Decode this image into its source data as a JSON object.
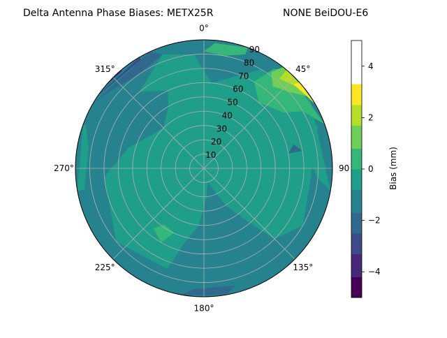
{
  "chart_data": {
    "type": "polar-contour",
    "title": "Delta Antenna Phase Biases: METX25R",
    "subtitle": "NONE BeiDOU-E6",
    "angle_ticks": [
      {
        "deg": 0,
        "label": "0°"
      },
      {
        "deg": 45,
        "label": "45°"
      },
      {
        "deg": 90,
        "label": "90"
      },
      {
        "deg": 135,
        "label": "135°"
      },
      {
        "deg": 180,
        "label": "180°"
      },
      {
        "deg": 225,
        "label": "225°"
      },
      {
        "deg": 270,
        "label": "270°"
      },
      {
        "deg": 315,
        "label": "315°"
      }
    ],
    "radial_ticks": [
      10,
      20,
      30,
      40,
      50,
      60,
      70,
      80,
      90
    ],
    "radial_max": 90,
    "colorbar": {
      "label": "Bias (mm)",
      "min": -5,
      "max": 5,
      "ticks": [
        -4,
        -2,
        0,
        2,
        4
      ],
      "levels": [
        -5,
        -4.2,
        -3.3,
        -2.5,
        -1.7,
        -0.8,
        0,
        0.8,
        1.7,
        2.5,
        3.3,
        4.2,
        5
      ],
      "colors": [
        "#440154",
        "#482979",
        "#3e4a89",
        "#31688e",
        "#26828e",
        "#1f9e89",
        "#35b779",
        "#6ece58",
        "#b5de2b",
        "#fde725"
      ]
    },
    "regions": [
      {
        "level": 1,
        "color": "#1f9e89",
        "points": [
          [
            10,
            165
          ],
          [
            30,
            150
          ],
          [
            50,
            140
          ],
          [
            70,
            135
          ],
          [
            80,
            120
          ],
          [
            75,
            100
          ],
          [
            85,
            70
          ],
          [
            80,
            30
          ],
          [
            60,
            5
          ],
          [
            80,
            -5
          ],
          [
            85,
            -20
          ],
          [
            70,
            -40
          ],
          [
            60,
            -25
          ],
          [
            50,
            -30
          ],
          [
            40,
            -45
          ],
          [
            55,
            -75
          ],
          [
            70,
            -95
          ],
          [
            80,
            -130
          ],
          [
            75,
            -160
          ],
          [
            55,
            -165
          ],
          [
            40,
            -175
          ],
          [
            20,
            175
          ]
        ]
      },
      {
        "level": 1,
        "color": "#1f9e89",
        "points": [
          [
            88,
            -70
          ],
          [
            82,
            -80
          ],
          [
            85,
            -100
          ],
          [
            90,
            -100
          ],
          [
            90,
            -70
          ]
        ]
      },
      {
        "level": 1,
        "color": "#1f9e89",
        "points": [
          [
            90,
            55
          ],
          [
            75,
            60
          ],
          [
            70,
            75
          ],
          [
            80,
            95
          ],
          [
            90,
            100
          ]
        ]
      },
      {
        "level": 2,
        "color": "#35b779",
        "points": [
          [
            70,
            30
          ],
          [
            60,
            40
          ],
          [
            68,
            55
          ],
          [
            80,
            60
          ],
          [
            90,
            70
          ],
          [
            90,
            40
          ],
          [
            85,
            35
          ]
        ]
      },
      {
        "level": 2,
        "color": "#35b779",
        "points": [
          [
            55,
            -140
          ],
          [
            48,
            -145
          ],
          [
            50,
            -155
          ],
          [
            60,
            -150
          ]
        ]
      },
      {
        "level": 2,
        "color": "#35b779",
        "points": [
          [
            82,
            0
          ],
          [
            88,
            5
          ],
          [
            90,
            20
          ],
          [
            85,
            20
          ],
          [
            80,
            10
          ]
        ]
      },
      {
        "level": 3,
        "color": "#6ece58",
        "points": [
          [
            75,
            40
          ],
          [
            80,
            48
          ],
          [
            88,
            55
          ],
          [
            90,
            60
          ],
          [
            90,
            38
          ],
          [
            82,
            35
          ]
        ]
      },
      {
        "level": 4,
        "color": "#b5de2b",
        "points": [
          [
            82,
            40
          ],
          [
            86,
            48
          ],
          [
            90,
            52
          ],
          [
            90,
            40
          ]
        ]
      },
      {
        "level": 5,
        "color": "#fde725",
        "points": [
          [
            86,
            47
          ],
          [
            88,
            55
          ],
          [
            90,
            60
          ],
          [
            90,
            48
          ]
        ]
      },
      {
        "level": -1,
        "color": "#31688e",
        "points": [
          [
            65,
            75
          ],
          [
            60,
            80
          ],
          [
            70,
            80
          ]
        ]
      },
      {
        "level": -1,
        "color": "#31688e",
        "points": [
          [
            85,
            -20
          ],
          [
            90,
            -25
          ],
          [
            90,
            -60
          ],
          [
            85,
            -50
          ],
          [
            80,
            -35
          ]
        ]
      },
      {
        "level": -1,
        "color": "#31688e",
        "points": [
          [
            85,
            165
          ],
          [
            90,
            170
          ],
          [
            90,
            190
          ],
          [
            85,
            185
          ]
        ]
      },
      {
        "level": -2,
        "color": "#3e4a89",
        "points": [
          [
            88,
            -30
          ],
          [
            90,
            -30
          ],
          [
            90,
            -55
          ],
          [
            88,
            -50
          ]
        ]
      },
      {
        "level": -3,
        "color": "#482979",
        "points": [
          [
            89,
            -40
          ],
          [
            90,
            -40
          ],
          [
            90,
            -50
          ]
        ]
      }
    ]
  }
}
